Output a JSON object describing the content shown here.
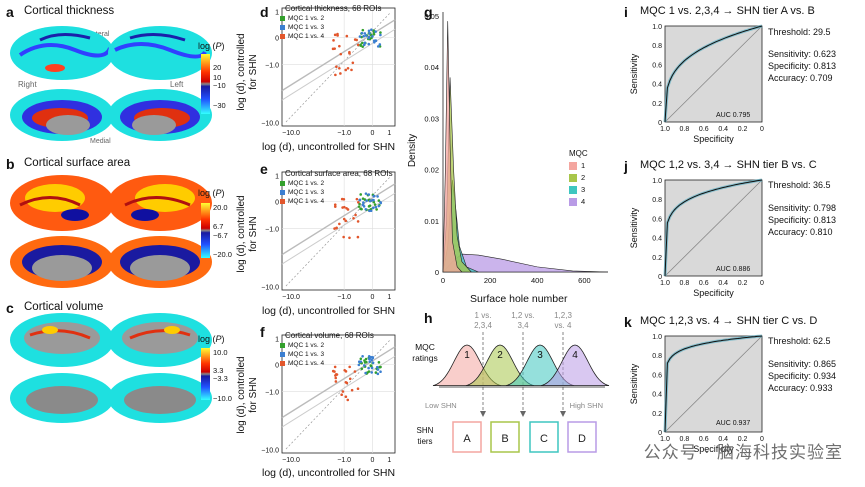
{
  "panels": {
    "a": {
      "label": "a",
      "title": "Cortical thickness",
      "view_lateral": "Lateral",
      "view_medial": "Medial",
      "hemi_right": "Right",
      "hemi_left": "Left",
      "colorbar": {
        "title": "log (",
        "title_p": "P",
        "title_close": ")",
        "ticks": [
          "20",
          "10",
          "−10",
          "−30"
        ]
      }
    },
    "b": {
      "label": "b",
      "title": "Cortical surface area",
      "colorbar": {
        "title": "log (",
        "title_p": "P",
        "title_close": ")",
        "ticks": [
          "20.0",
          "6.7",
          "−6.7",
          "−20.0"
        ]
      }
    },
    "c": {
      "label": "c",
      "title": "Cortical volume",
      "colorbar": {
        "title": "log (",
        "title_p": "P",
        "title_close": ")",
        "ticks": [
          "10.0",
          "3.3",
          "−3.3",
          "−10.0"
        ]
      }
    },
    "d": {
      "label": "d",
      "title": "Cortical thickness, 68 ROIs"
    },
    "e": {
      "label": "e",
      "title": "Cortical surface area, 68 ROIs"
    },
    "f": {
      "label": "f",
      "title": "Cortical volume, 68 ROIs"
    },
    "scatter_common": {
      "xlabel": "log (d), uncontrolled for SHN",
      "ylabel_1": "log (d), controlled",
      "ylabel_2": "for SHN",
      "legend": [
        "MQC 1 vs. 2",
        "MQC 1 vs. 3",
        "MQC 1 vs. 4"
      ],
      "legend_colors": [
        "#33a02c",
        "#3b7fd1",
        "#e2562c"
      ],
      "xticks": [
        "−10.0",
        "−1.0",
        "0",
        "1"
      ],
      "yticks": [
        "1",
        "0",
        "−1.0",
        "−10.0"
      ]
    },
    "g": {
      "label": "g",
      "xlabel": "Surface hole number",
      "ylabel": "Density",
      "yticks": [
        "0.05",
        "0.04",
        "0.03",
        "0.02",
        "0.01",
        "0"
      ],
      "xticks": [
        "0",
        "200",
        "400",
        "600"
      ],
      "legend_title": "MQC",
      "legend": [
        "1",
        "2",
        "3",
        "4"
      ],
      "colors": [
        "#f4a6a0",
        "#a8c64a",
        "#3ec6c0",
        "#b99be6"
      ]
    },
    "h": {
      "label": "h",
      "ratings_label_1": "MQC",
      "ratings_label_2": "ratings",
      "curve_labels": [
        "1",
        "2",
        "3",
        "4"
      ],
      "splits": [
        "1 vs.",
        "2,3,4",
        "1,2 vs.",
        "3,4",
        "1,2,3",
        "vs. 4"
      ],
      "low": "Low SHN",
      "high": "High SHN",
      "tiers_label_1": "SHN",
      "tiers_label_2": "tiers",
      "tiers": [
        "A",
        "B",
        "C",
        "D"
      ],
      "tier_colors": [
        "#f4a6a0",
        "#a8c64a",
        "#3ec6c0",
        "#b99be6"
      ]
    },
    "i": {
      "label": "i",
      "title": "MQC 1 vs. 2,3,4 → SHN tier A vs. B",
      "threshold": "Threshold: 29.5",
      "sensitivity": "Sensitivity: 0.623",
      "specificity": "Specificity: 0.813",
      "accuracy": "Accuracy: 0.709",
      "auc": "AUC 0.795"
    },
    "j": {
      "label": "j",
      "title": "MQC 1,2 vs. 3,4 → SHN tier B vs. C",
      "threshold": "Threshold: 36.5",
      "sensitivity": "Sensitivity: 0.798",
      "specificity": "Specificity: 0.813",
      "accuracy": "Accuracy: 0.810",
      "auc": "AUC 0.886"
    },
    "k": {
      "label": "k",
      "title": "MQC 1,2,3 vs. 4 → SHN tier C vs. D",
      "threshold": "Threshold: 62.5",
      "sensitivity": "Sensitivity: 0.865",
      "specificity": "Specificity: 0.934",
      "accuracy": "Accuracy: 0.933",
      "auc": "AUC 0.937"
    },
    "roc_common": {
      "ylabel": "Sensitivity",
      "xlabel": "Specificity",
      "yticks": [
        "1.0",
        "0.8",
        "0.6",
        "0.4",
        "0.2",
        "0"
      ],
      "xticks": [
        "1.0",
        "0.8",
        "0.6",
        "0.4",
        "0.2",
        "0"
      ]
    }
  },
  "watermark": "公众号 · 脑海科技实验室",
  "chart_data": [
    {
      "type": "scatter",
      "title": "Cortical thickness, 68 ROIs",
      "xlabel": "log (d), uncontrolled for SHN",
      "ylabel": "log (d), controlled for SHN",
      "series": [
        {
          "name": "MQC 1 vs. 2"
        },
        {
          "name": "MQC 1 vs. 3"
        },
        {
          "name": "MQC 1 vs. 4"
        }
      ]
    },
    {
      "type": "scatter",
      "title": "Cortical surface area, 68 ROIs",
      "xlabel": "log (d), uncontrolled for SHN",
      "ylabel": "log (d), controlled for SHN",
      "series": [
        {
          "name": "MQC 1 vs. 2"
        },
        {
          "name": "MQC 1 vs. 3"
        },
        {
          "name": "MQC 1 vs. 4"
        }
      ]
    },
    {
      "type": "scatter",
      "title": "Cortical volume, 68 ROIs",
      "xlabel": "log (d), uncontrolled for SHN",
      "ylabel": "log (d), controlled for SHN",
      "series": [
        {
          "name": "MQC 1 vs. 2"
        },
        {
          "name": "MQC 1 vs. 3"
        },
        {
          "name": "MQC 1 vs. 4"
        }
      ]
    },
    {
      "type": "area",
      "xlabel": "Surface hole number",
      "ylabel": "Density",
      "xlim": [
        0,
        700
      ],
      "ylim": [
        0,
        0.05
      ],
      "series": [
        {
          "name": "1",
          "x": [
            0,
            10,
            20,
            30,
            40,
            60,
            80
          ],
          "values": [
            0,
            0.02,
            0.049,
            0.025,
            0.006,
            0.001,
            0
          ]
        },
        {
          "name": "2",
          "x": [
            0,
            15,
            30,
            45,
            60,
            80,
            120
          ],
          "values": [
            0,
            0.01,
            0.038,
            0.02,
            0.007,
            0.002,
            0
          ]
        },
        {
          "name": "3",
          "x": [
            0,
            20,
            40,
            55,
            70,
            100,
            150
          ],
          "values": [
            0,
            0.005,
            0.018,
            0.012,
            0.005,
            0.001,
            0
          ]
        },
        {
          "name": "4",
          "x": [
            0,
            40,
            80,
            150,
            250,
            400,
            550,
            700
          ],
          "values": [
            0,
            0.002,
            0.0035,
            0.0033,
            0.0025,
            0.001,
            0.0002,
            0
          ]
        }
      ]
    },
    {
      "type": "line",
      "title": "MQC 1 vs. 2,3,4 → SHN tier A vs. B",
      "xlabel": "Specificity",
      "ylabel": "Sensitivity",
      "auc": 0.795
    },
    {
      "type": "line",
      "title": "MQC 1,2 vs. 3,4 → SHN tier B vs. C",
      "xlabel": "Specificity",
      "ylabel": "Sensitivity",
      "auc": 0.886
    },
    {
      "type": "line",
      "title": "MQC 1,2,3 vs. 4 → SHN tier C vs. D",
      "xlabel": "Specificity",
      "ylabel": "Sensitivity",
      "auc": 0.937
    }
  ]
}
